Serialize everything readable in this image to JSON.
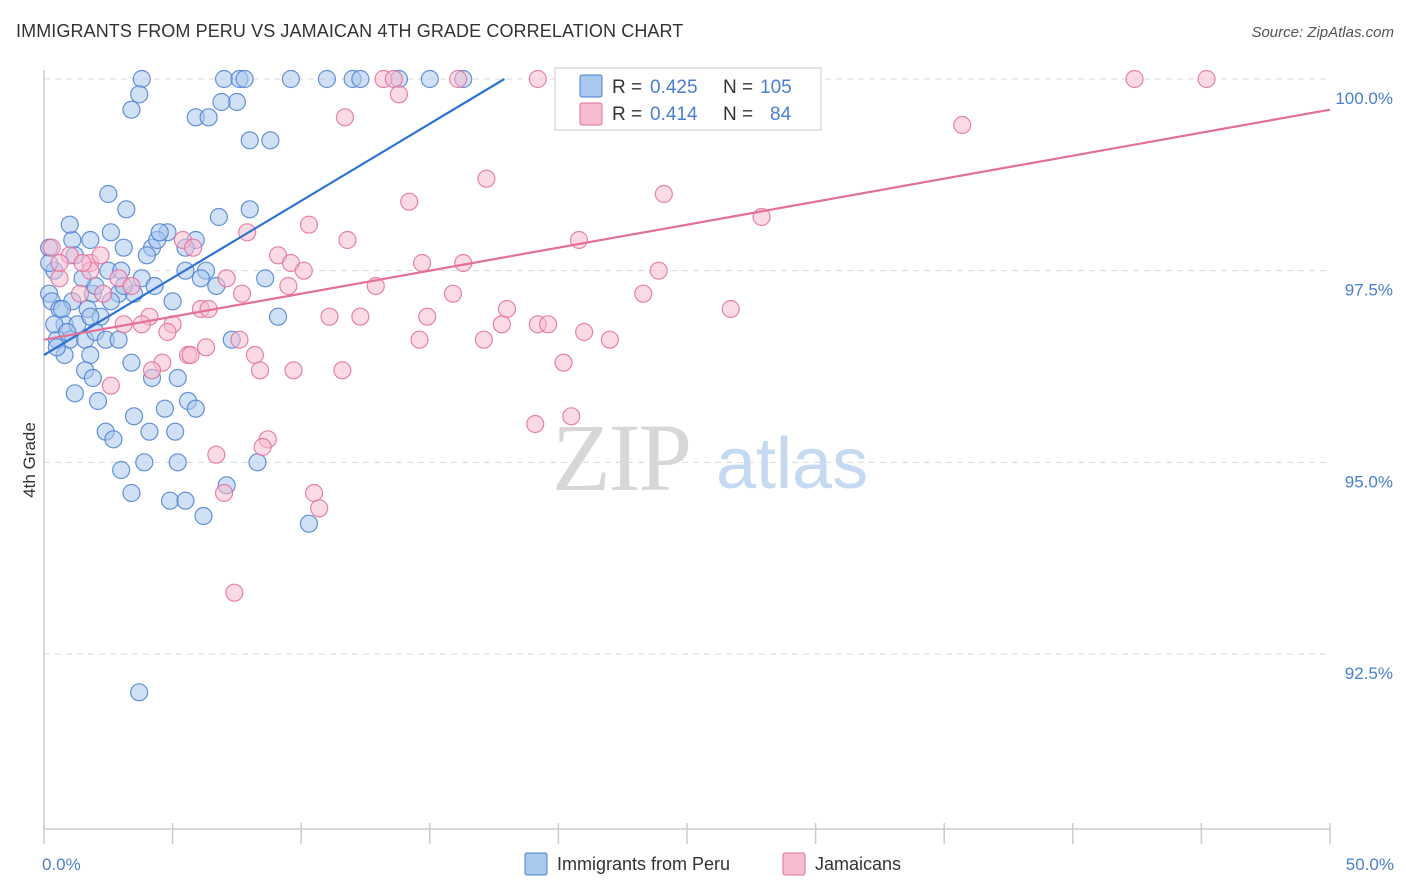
{
  "header": {
    "title": "IMMIGRANTS FROM PERU VS JAMAICAN 4TH GRADE CORRELATION CHART",
    "source": "Source: ZipAtlas.com"
  },
  "watermark": {
    "part1": "ZIP",
    "part2": "atlas"
  },
  "colors": {
    "blue": "#4a7fd0",
    "blue_fill": "#a9c8ee",
    "blue_line": "#2f72d1",
    "pink": "#e36f9a",
    "pink_fill": "#f6bcd0",
    "pink_line": "#e36f9a",
    "grid": "#d9d9d9"
  },
  "stats_legend": [
    {
      "series": "Immigrants from Peru",
      "r_label": "R =",
      "r_value": "0.425",
      "n_label": "N =",
      "n_value": "105",
      "color": "blue"
    },
    {
      "series": "Jamaicans",
      "r_label": "R =",
      "r_value": "0.414",
      "n_label": "N =",
      "n_value": "84",
      "color": "pink"
    }
  ],
  "chart_data": {
    "type": "scatter",
    "title": "IMMIGRANTS FROM PERU VS JAMAICAN 4TH GRADE CORRELATION CHART",
    "xlabel": "",
    "ylabel": "4th Grade",
    "xlim": [
      0,
      50
    ],
    "ylim": [
      90.0,
      100.2
    ],
    "x_tick_labels": [
      "0.0%",
      "50.0%"
    ],
    "y_ticks": [
      92.5,
      95.0,
      97.5,
      100.0
    ],
    "y_tick_labels": [
      "92.5%",
      "95.0%",
      "97.5%",
      "100.0%"
    ],
    "grid": true,
    "legend_position": "bottom-center",
    "series": [
      {
        "name": "Immigrants from Peru",
        "color": "blue",
        "r": 0.425,
        "n": 105,
        "trend": {
          "x": [
            0.0,
            17.9
          ],
          "y": [
            96.4,
            100.0
          ]
        },
        "points": [
          [
            3.8,
            100.0
          ],
          [
            7.0,
            100.0
          ],
          [
            7.6,
            100.0
          ],
          [
            7.8,
            100.0
          ],
          [
            9.6,
            100.0
          ],
          [
            11.0,
            100.0
          ],
          [
            12.0,
            100.0
          ],
          [
            12.3,
            100.0
          ],
          [
            13.8,
            100.0
          ],
          [
            15.0,
            100.0
          ],
          [
            16.3,
            100.0
          ],
          [
            3.7,
            99.8
          ],
          [
            7.5,
            99.7
          ],
          [
            3.4,
            99.6
          ],
          [
            5.9,
            99.5
          ],
          [
            6.4,
            99.5
          ],
          [
            6.9,
            99.7
          ],
          [
            8.0,
            99.2
          ],
          [
            8.8,
            99.2
          ],
          [
            2.5,
            98.5
          ],
          [
            3.2,
            98.3
          ],
          [
            6.8,
            98.2
          ],
          [
            8.0,
            98.3
          ],
          [
            2.6,
            98.0
          ],
          [
            4.8,
            98.0
          ],
          [
            1.1,
            97.9
          ],
          [
            1.8,
            97.9
          ],
          [
            3.1,
            97.8
          ],
          [
            4.2,
            97.8
          ],
          [
            4.4,
            97.9
          ],
          [
            5.9,
            97.9
          ],
          [
            4.0,
            97.7
          ],
          [
            5.5,
            97.8
          ],
          [
            0.2,
            97.8
          ],
          [
            1.2,
            97.7
          ],
          [
            0.4,
            97.5
          ],
          [
            2.5,
            97.5
          ],
          [
            3.0,
            97.5
          ],
          [
            3.8,
            97.4
          ],
          [
            5.5,
            97.5
          ],
          [
            6.3,
            97.5
          ],
          [
            0.2,
            97.2
          ],
          [
            0.3,
            97.1
          ],
          [
            0.6,
            97.0
          ],
          [
            1.1,
            97.1
          ],
          [
            1.9,
            97.2
          ],
          [
            2.9,
            97.2
          ],
          [
            3.5,
            97.2
          ],
          [
            1.7,
            97.0
          ],
          [
            2.2,
            96.9
          ],
          [
            0.8,
            96.8
          ],
          [
            1.3,
            96.8
          ],
          [
            1.8,
            96.9
          ],
          [
            1.0,
            96.6
          ],
          [
            0.5,
            96.6
          ],
          [
            1.6,
            96.6
          ],
          [
            2.0,
            96.7
          ],
          [
            2.4,
            96.6
          ],
          [
            2.9,
            96.6
          ],
          [
            0.4,
            96.8
          ],
          [
            0.9,
            96.7
          ],
          [
            7.3,
            96.6
          ],
          [
            9.1,
            96.9
          ],
          [
            1.8,
            96.4
          ],
          [
            0.8,
            96.4
          ],
          [
            1.6,
            96.2
          ],
          [
            3.4,
            96.3
          ],
          [
            4.2,
            96.1
          ],
          [
            5.2,
            96.1
          ],
          [
            1.2,
            95.9
          ],
          [
            2.1,
            95.8
          ],
          [
            5.6,
            95.8
          ],
          [
            4.7,
            95.7
          ],
          [
            5.9,
            95.7
          ],
          [
            3.5,
            95.6
          ],
          [
            2.4,
            95.4
          ],
          [
            4.1,
            95.4
          ],
          [
            5.1,
            95.4
          ],
          [
            2.7,
            95.3
          ],
          [
            3.0,
            94.9
          ],
          [
            3.9,
            95.0
          ],
          [
            5.2,
            95.0
          ],
          [
            8.3,
            95.0
          ],
          [
            7.1,
            94.7
          ],
          [
            3.4,
            94.6
          ],
          [
            4.9,
            94.5
          ],
          [
            5.5,
            94.5
          ],
          [
            6.2,
            94.3
          ],
          [
            10.3,
            94.2
          ],
          [
            3.7,
            92.0
          ],
          [
            4.3,
            97.3
          ],
          [
            5.0,
            97.1
          ],
          [
            2.0,
            97.3
          ],
          [
            3.1,
            97.3
          ],
          [
            6.7,
            97.3
          ],
          [
            1.5,
            97.4
          ],
          [
            0.2,
            97.6
          ],
          [
            1.0,
            98.1
          ],
          [
            4.5,
            98.0
          ],
          [
            2.6,
            97.1
          ],
          [
            0.7,
            97.0
          ],
          [
            8.6,
            97.4
          ],
          [
            6.1,
            97.4
          ],
          [
            1.9,
            96.1
          ],
          [
            0.5,
            96.5
          ]
        ]
      },
      {
        "name": "Jamaicans",
        "color": "pink",
        "r": 0.414,
        "n": 84,
        "trend": {
          "x": [
            0.0,
            50.0
          ],
          "y": [
            96.6,
            99.6
          ]
        },
        "points": [
          [
            13.2,
            100.0
          ],
          [
            13.6,
            100.0
          ],
          [
            16.1,
            100.0
          ],
          [
            19.2,
            100.0
          ],
          [
            27.1,
            100.0
          ],
          [
            42.4,
            100.0
          ],
          [
            45.2,
            100.0
          ],
          [
            11.7,
            99.5
          ],
          [
            13.8,
            99.8
          ],
          [
            35.7,
            99.4
          ],
          [
            17.2,
            98.7
          ],
          [
            14.2,
            98.4
          ],
          [
            24.1,
            98.5
          ],
          [
            27.9,
            98.2
          ],
          [
            7.9,
            98.0
          ],
          [
            10.3,
            98.1
          ],
          [
            11.8,
            97.9
          ],
          [
            20.8,
            97.9
          ],
          [
            5.4,
            97.9
          ],
          [
            5.8,
            97.8
          ],
          [
            0.3,
            97.8
          ],
          [
            1.0,
            97.7
          ],
          [
            1.8,
            97.6
          ],
          [
            9.1,
            97.7
          ],
          [
            9.6,
            97.6
          ],
          [
            10.1,
            97.5
          ],
          [
            14.7,
            97.6
          ],
          [
            16.3,
            97.6
          ],
          [
            23.9,
            97.5
          ],
          [
            1.8,
            97.5
          ],
          [
            2.9,
            97.4
          ],
          [
            7.1,
            97.4
          ],
          [
            9.5,
            97.3
          ],
          [
            12.9,
            97.3
          ],
          [
            3.4,
            97.3
          ],
          [
            7.7,
            97.2
          ],
          [
            15.9,
            97.2
          ],
          [
            23.3,
            97.2
          ],
          [
            6.1,
            97.0
          ],
          [
            6.4,
            97.0
          ],
          [
            18.0,
            97.0
          ],
          [
            26.7,
            97.0
          ],
          [
            0.6,
            97.4
          ],
          [
            2.3,
            97.2
          ],
          [
            3.1,
            96.8
          ],
          [
            4.1,
            96.9
          ],
          [
            5.0,
            96.8
          ],
          [
            11.1,
            96.9
          ],
          [
            12.3,
            96.9
          ],
          [
            14.9,
            96.9
          ],
          [
            17.8,
            96.8
          ],
          [
            19.2,
            96.8
          ],
          [
            21.0,
            96.7
          ],
          [
            22.0,
            96.6
          ],
          [
            4.8,
            96.7
          ],
          [
            6.3,
            96.5
          ],
          [
            14.6,
            96.6
          ],
          [
            8.2,
            96.4
          ],
          [
            5.6,
            96.4
          ],
          [
            11.6,
            96.2
          ],
          [
            2.6,
            96.0
          ],
          [
            8.4,
            96.2
          ],
          [
            9.7,
            96.2
          ],
          [
            4.6,
            96.3
          ],
          [
            20.2,
            96.3
          ],
          [
            4.2,
            96.2
          ],
          [
            20.5,
            95.6
          ],
          [
            19.1,
            95.5
          ],
          [
            8.7,
            95.3
          ],
          [
            8.5,
            95.2
          ],
          [
            6.7,
            95.1
          ],
          [
            10.5,
            94.6
          ],
          [
            10.7,
            94.4
          ],
          [
            7.0,
            94.6
          ],
          [
            7.4,
            93.3
          ],
          [
            19.6,
            96.8
          ],
          [
            17.1,
            96.6
          ],
          [
            1.5,
            97.6
          ],
          [
            2.2,
            97.7
          ],
          [
            3.8,
            96.8
          ],
          [
            0.6,
            97.6
          ],
          [
            1.4,
            97.2
          ],
          [
            7.6,
            96.6
          ],
          [
            5.7,
            96.4
          ]
        ]
      }
    ]
  },
  "bottom_legend": [
    {
      "label": "Immigrants from Peru",
      "color": "blue"
    },
    {
      "label": "Jamaicans",
      "color": "pink"
    }
  ]
}
